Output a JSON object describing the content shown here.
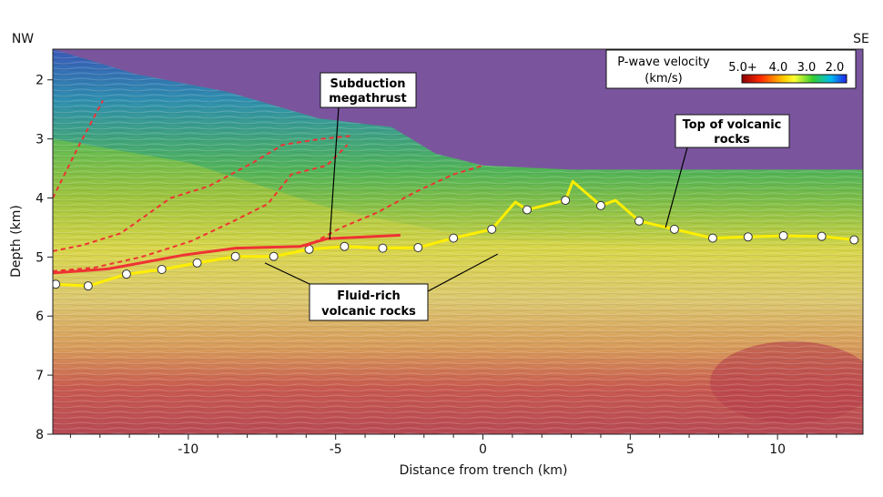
{
  "chart_data": {
    "type": "line",
    "title": "",
    "xlabel": "Distance from trench (km)",
    "ylabel": "Depth (km)",
    "xlim": [
      -14.6,
      12.9
    ],
    "ylim": [
      8,
      1.48
    ],
    "y_inverted": true,
    "grid": false,
    "xticks": [
      -10,
      -5,
      0,
      5,
      10
    ],
    "xtick_labels": [
      "-10",
      "-5",
      "0",
      "5",
      "10"
    ],
    "yticks": [
      2,
      3,
      4,
      5,
      6,
      7,
      8
    ],
    "ytick_labels": [
      "2",
      "3",
      "4",
      "5",
      "6",
      "7",
      "8"
    ],
    "corner_labels": {
      "left": "NW",
      "right": "SE"
    },
    "background": "seismic reflection image colored by P-wave velocity",
    "colorbar": {
      "title_line1": "P-wave velocity",
      "title_line2": "(km/s)",
      "ticks": [
        "5.0+",
        "4.0",
        "3.0",
        "2.0"
      ],
      "colors": [
        "#8b0000",
        "#ff2a00",
        "#ffcc00",
        "#ffff33",
        "#33cc33",
        "#00bbee",
        "#2222ee"
      ]
    },
    "series": [
      {
        "name": "Top of volcanic rocks",
        "color": "#ffee00",
        "style": "solid",
        "markers": true,
        "x": [
          -14.5,
          -13.4,
          -12.1,
          -10.9,
          -9.7,
          -8.4,
          -7.1,
          -5.9,
          -4.7,
          -3.4,
          -2.2,
          -1.0,
          0.3,
          1.1,
          1.5,
          2.8,
          3.05,
          4.0,
          4.5,
          5.3,
          6.5,
          7.8,
          9.0,
          10.2,
          11.5,
          12.6
        ],
        "y": [
          5.46,
          5.49,
          5.29,
          5.21,
          5.1,
          4.99,
          4.99,
          4.87,
          4.82,
          4.85,
          4.84,
          4.68,
          4.53,
          4.07,
          4.2,
          4.04,
          3.72,
          4.13,
          4.04,
          4.39,
          4.53,
          4.68,
          4.66,
          4.64,
          4.65,
          4.71
        ],
        "marker_mask": [
          1,
          1,
          1,
          1,
          1,
          1,
          1,
          1,
          1,
          1,
          1,
          1,
          1,
          0,
          1,
          1,
          0,
          1,
          0,
          1,
          1,
          1,
          1,
          1,
          1,
          1
        ]
      },
      {
        "name": "Subduction megathrust",
        "color": "#ee3333",
        "style": "solid",
        "x": [
          -14.6,
          -12.7,
          -10.2,
          -8.4,
          -6.2,
          -5.3,
          -2.8
        ],
        "y": [
          5.27,
          5.2,
          4.97,
          4.85,
          4.82,
          4.69,
          4.63
        ]
      },
      {
        "color": "#ee3333",
        "style": "dashed",
        "x": [
          -14.6,
          -13.7,
          -12.9
        ],
        "y": [
          4.0,
          3.1,
          2.35
        ]
      },
      {
        "color": "#ee3333",
        "style": "dashed",
        "x": [
          -14.6,
          -13.6,
          -12.3,
          -10.6,
          -9.3,
          -7.8,
          -6.8,
          -5.5,
          -4.5
        ],
        "y": [
          4.9,
          4.8,
          4.6,
          4.0,
          3.8,
          3.4,
          3.1,
          3.0,
          2.95
        ]
      },
      {
        "color": "#ee3333",
        "style": "dashed",
        "x": [
          -14.6,
          -13.2,
          -11.6,
          -9.9,
          -8.5,
          -7.3,
          -6.5,
          -5.3,
          -4.6
        ],
        "y": [
          5.24,
          5.18,
          5.0,
          4.73,
          4.4,
          4.1,
          3.6,
          3.45,
          3.1
        ]
      },
      {
        "color": "#ee3333",
        "style": "dashed",
        "x": [
          -6.0,
          -4.8,
          -3.6,
          -2.3,
          -1.0,
          0.0
        ],
        "y": [
          4.82,
          4.5,
          4.25,
          3.9,
          3.6,
          3.45
        ]
      }
    ],
    "seafloor": {
      "x": [
        -14.6,
        -11.8,
        -8.7,
        -5.6,
        -3.1,
        -1.6,
        0.0,
        3.0,
        12.9
      ],
      "y": [
        1.48,
        1.9,
        2.2,
        2.65,
        2.8,
        3.25,
        3.45,
        3.52,
        3.52
      ]
    },
    "annotations": [
      {
        "line1": "Subduction",
        "line2": "megathrust",
        "target_x": [
          -5.2
        ],
        "target_y": [
          4.7
        ]
      },
      {
        "line1": "Top of volcanic",
        "line2": "rocks",
        "target_x": [
          6.2
        ],
        "target_y": [
          4.5
        ]
      },
      {
        "line1": "Fluid-rich",
        "line2": "volcanic rocks",
        "target_x": [
          -7.4,
          0.5
        ],
        "target_y": [
          5.1,
          4.95
        ]
      }
    ]
  }
}
